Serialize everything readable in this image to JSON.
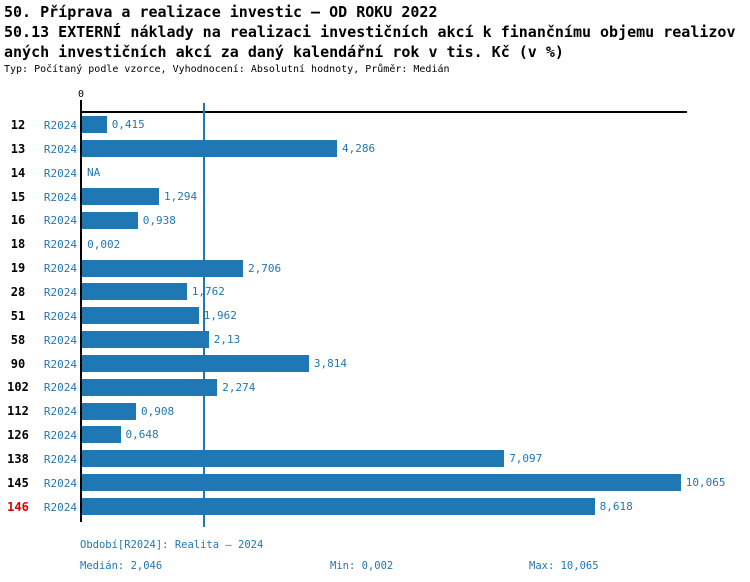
{
  "header": {
    "title_line1": "50. Příprava a realizace investic – OD ROKU 2022",
    "title_line2": "50.13 EXTERNÍ náklady na realizaci investičních akcí k finančnímu objemu realizov",
    "title_line3": "aných investičních akcí za daný kalendářní rok v tis. Kč (v %)",
    "subtitle": "Typ: Počítaný podle vzorce, Vyhodnocení: Absolutní hodnoty, Průměr: Medián"
  },
  "colors": {
    "bar_blue": "#1f77b4",
    "text_blue": "#1f77b4",
    "highlight_red": "#e00000",
    "axis_black": "#000000"
  },
  "chart_data": {
    "type": "bar",
    "orientation": "horizontal",
    "title": "50. Příprava a realizace investic – OD ROKU 2022 / 50.13 EXTERNÍ náklady na realizaci investičních akcí k finančnímu objemu realizovaných investičních akcí za daný kalendářní rok v tis. Kč (v %)",
    "x_axis": {
      "zero_tick_label": "0",
      "xlim": [
        0,
        10.17
      ],
      "grid": false
    },
    "legend_position": "none",
    "median": 2.046,
    "median_value_label": "2,046",
    "min": 0.002,
    "max": 10.065,
    "rows": [
      {
        "id": "12",
        "period": "R2024",
        "value": 0.415,
        "label": "0,415",
        "highlighted": false
      },
      {
        "id": "13",
        "period": "R2024",
        "value": 4.286,
        "label": "4,286",
        "highlighted": false
      },
      {
        "id": "14",
        "period": "R2024",
        "value": null,
        "label": "NA",
        "highlighted": false
      },
      {
        "id": "15",
        "period": "R2024",
        "value": 1.294,
        "label": "1,294",
        "highlighted": false
      },
      {
        "id": "16",
        "period": "R2024",
        "value": 0.938,
        "label": "0,938",
        "highlighted": false
      },
      {
        "id": "18",
        "period": "R2024",
        "value": 0.002,
        "label": "0,002",
        "highlighted": false
      },
      {
        "id": "19",
        "period": "R2024",
        "value": 2.706,
        "label": "2,706",
        "highlighted": false
      },
      {
        "id": "28",
        "period": "R2024",
        "value": 1.762,
        "label": "1,762",
        "highlighted": false
      },
      {
        "id": "51",
        "period": "R2024",
        "value": 1.962,
        "label": "1,962",
        "highlighted": false
      },
      {
        "id": "58",
        "period": "R2024",
        "value": 2.13,
        "label": "2,13",
        "highlighted": false
      },
      {
        "id": "90",
        "period": "R2024",
        "value": 3.814,
        "label": "3,814",
        "highlighted": false
      },
      {
        "id": "102",
        "period": "R2024",
        "value": 2.274,
        "label": "2,274",
        "highlighted": false
      },
      {
        "id": "112",
        "period": "R2024",
        "value": 0.908,
        "label": "0,908",
        "highlighted": false
      },
      {
        "id": "126",
        "period": "R2024",
        "value": 0.648,
        "label": "0,648",
        "highlighted": false
      },
      {
        "id": "138",
        "period": "R2024",
        "value": 7.097,
        "label": "7,097",
        "highlighted": false
      },
      {
        "id": "145",
        "period": "R2024",
        "value": 10.065,
        "label": "10,065",
        "highlighted": false
      },
      {
        "id": "146",
        "period": "R2024",
        "value": 8.618,
        "label": "8,618",
        "highlighted": true
      }
    ]
  },
  "footer": {
    "period_line": "Období[R2024]: Realita – 2024",
    "median_text": "Medián: 2,046",
    "min_text": "Min: 0,002",
    "max_text": "Max: 10,065"
  }
}
